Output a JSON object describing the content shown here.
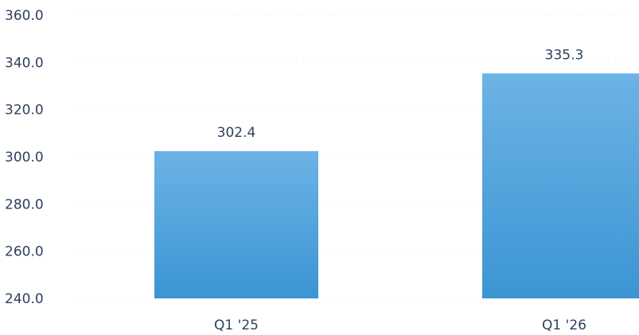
{
  "chart_data": {
    "type": "bar",
    "categories": [
      "Q1 '25",
      "Q1 '26"
    ],
    "values": [
      302.4,
      335.3
    ],
    "value_labels": [
      "302.4",
      "335.3"
    ],
    "yticks": [
      "360.0",
      "340.0",
      "320.0",
      "300.0",
      "280.0",
      "260.0",
      "240.0"
    ],
    "ylim": [
      240,
      360
    ],
    "grid": true,
    "legend": "none",
    "bar_color_top": "#6cb3e6",
    "bar_color_bottom": "#3c95d3",
    "text_color": "#2e3f5c"
  }
}
